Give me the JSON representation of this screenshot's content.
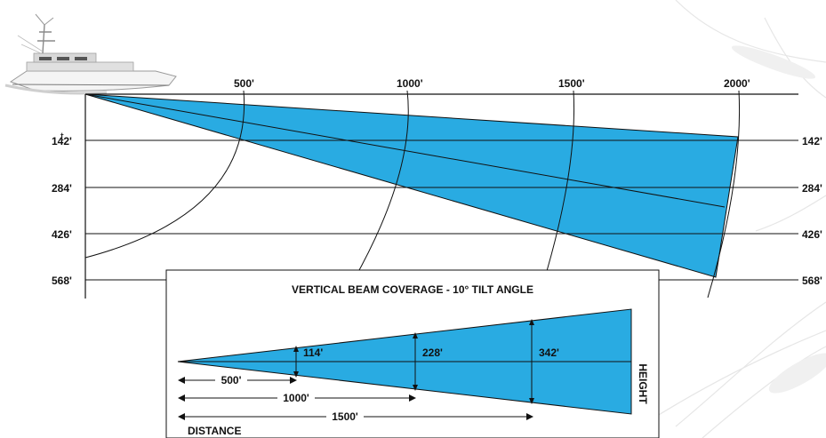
{
  "colors": {
    "beam_fill": "#29ABE2",
    "line": "#111111",
    "background": "#ffffff"
  },
  "stray_text": "t",
  "main": {
    "distance_labels": [
      "500'",
      "1000'",
      "1500'",
      "2000'"
    ],
    "depth_labels_left": [
      "142'",
      "284'",
      "426'",
      "568'"
    ],
    "depth_labels_right": [
      "142'",
      "284'",
      "426'",
      "568'"
    ],
    "boat_icon": "sportfishing-boat-icon"
  },
  "inset": {
    "title": "VERTICAL BEAM COVERAGE - 10° TILT ANGLE",
    "height_labels": [
      "114'",
      "228'",
      "342'"
    ],
    "distance_labels": [
      "500'",
      "1000'",
      "1500'"
    ],
    "height_axis_label": "HEIGHT",
    "distance_axis_label": "DISTANCE"
  }
}
